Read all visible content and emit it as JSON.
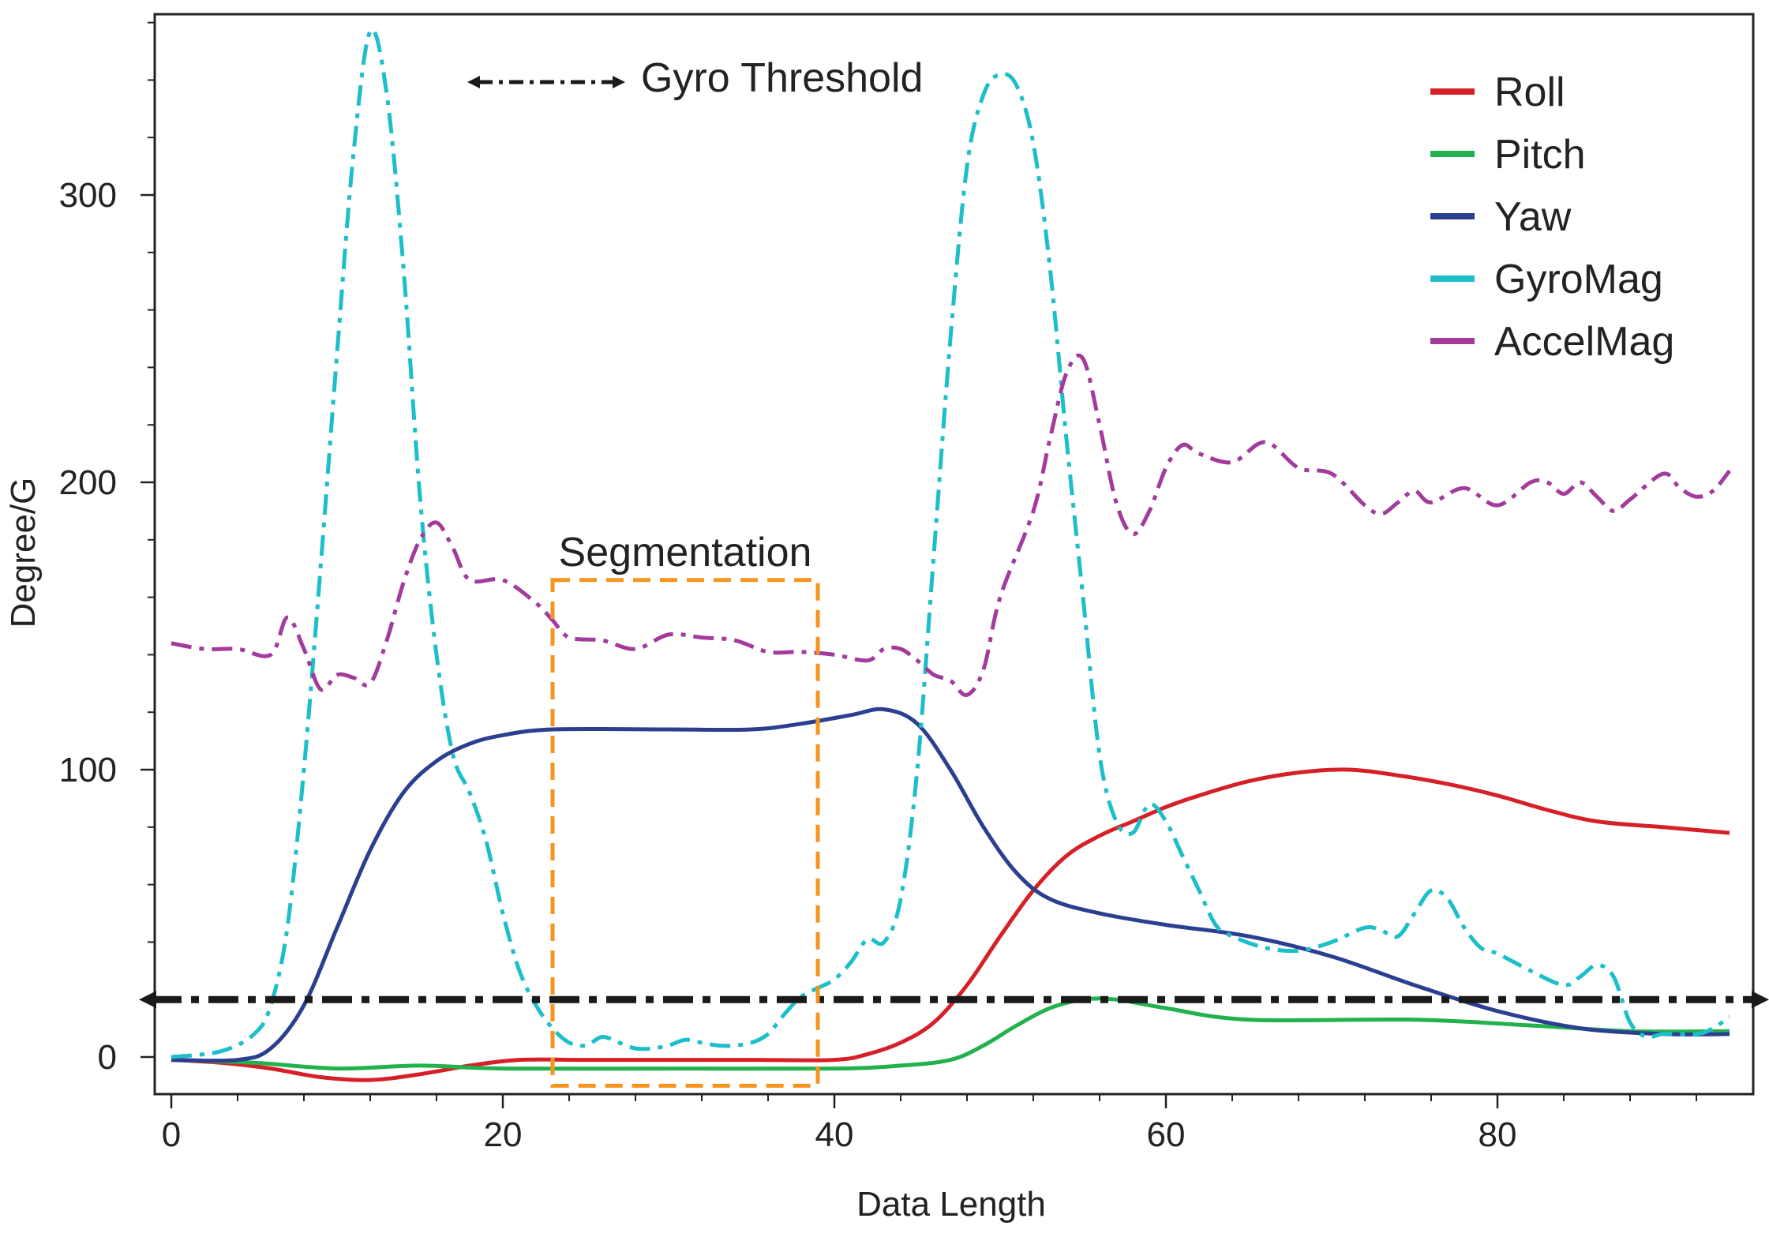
{
  "chart_data": {
    "type": "line",
    "title": "",
    "xlabel": "Data Length",
    "ylabel": "Degree/G",
    "xlim": [
      -1,
      95
    ],
    "ylim": [
      -10,
      360
    ],
    "xticks": [
      0,
      20,
      40,
      60,
      80
    ],
    "yticks": [
      0,
      100,
      200,
      300
    ],
    "x_minor_step": 4,
    "y_minor_step": 20,
    "grid": false,
    "legend_position": "top-right",
    "series": [
      {
        "name": "Roll",
        "color": "#d62027",
        "style": "solid",
        "points": [
          [
            0,
            -1
          ],
          [
            3,
            -2
          ],
          [
            6,
            -4
          ],
          [
            9,
            -7
          ],
          [
            12,
            -8
          ],
          [
            15,
            -6
          ],
          [
            18,
            -3
          ],
          [
            21,
            -1
          ],
          [
            25,
            -1
          ],
          [
            30,
            -1
          ],
          [
            35,
            -1
          ],
          [
            40,
            -1
          ],
          [
            42,
            1
          ],
          [
            44,
            5
          ],
          [
            46,
            12
          ],
          [
            48,
            25
          ],
          [
            50,
            42
          ],
          [
            52,
            58
          ],
          [
            54,
            70
          ],
          [
            56,
            77
          ],
          [
            58,
            82
          ],
          [
            60,
            87
          ],
          [
            62,
            91
          ],
          [
            65,
            96
          ],
          [
            68,
            99
          ],
          [
            71,
            100
          ],
          [
            74,
            98
          ],
          [
            77,
            95
          ],
          [
            80,
            91
          ],
          [
            83,
            86
          ],
          [
            86,
            82
          ],
          [
            90,
            80
          ],
          [
            94,
            78
          ]
        ]
      },
      {
        "name": "Pitch",
        "color": "#22b14c",
        "style": "solid",
        "points": [
          [
            0,
            -1
          ],
          [
            5,
            -2
          ],
          [
            10,
            -4
          ],
          [
            15,
            -3
          ],
          [
            20,
            -4
          ],
          [
            30,
            -4
          ],
          [
            40,
            -4
          ],
          [
            44,
            -3
          ],
          [
            47,
            -1
          ],
          [
            49,
            4
          ],
          [
            51,
            11
          ],
          [
            53,
            17
          ],
          [
            55,
            20
          ],
          [
            57,
            20
          ],
          [
            60,
            17
          ],
          [
            65,
            13
          ],
          [
            75,
            13
          ],
          [
            82,
            11
          ],
          [
            88,
            9
          ],
          [
            94,
            9
          ]
        ]
      },
      {
        "name": "Yaw",
        "color": "#2b3f91",
        "style": "solid",
        "points": [
          [
            0,
            -1
          ],
          [
            4,
            -1
          ],
          [
            6,
            3
          ],
          [
            8,
            18
          ],
          [
            10,
            45
          ],
          [
            12,
            72
          ],
          [
            14,
            92
          ],
          [
            16,
            103
          ],
          [
            18,
            109
          ],
          [
            20,
            112
          ],
          [
            23,
            114
          ],
          [
            30,
            114
          ],
          [
            35,
            114
          ],
          [
            38,
            116
          ],
          [
            41,
            119
          ],
          [
            43,
            121
          ],
          [
            45,
            116
          ],
          [
            47,
            100
          ],
          [
            49,
            80
          ],
          [
            51,
            64
          ],
          [
            53,
            55
          ],
          [
            56,
            50
          ],
          [
            60,
            46
          ],
          [
            65,
            42
          ],
          [
            70,
            35
          ],
          [
            75,
            25
          ],
          [
            80,
            16
          ],
          [
            85,
            10
          ],
          [
            90,
            8
          ],
          [
            94,
            8
          ]
        ]
      },
      {
        "name": "GyroMag",
        "color": "#1cbfc9",
        "style": "dashdot",
        "points": [
          [
            0,
            0
          ],
          [
            3,
            2
          ],
          [
            5,
            8
          ],
          [
            6,
            18
          ],
          [
            7,
            45
          ],
          [
            8,
            100
          ],
          [
            9,
            170
          ],
          [
            10,
            245
          ],
          [
            11,
            315
          ],
          [
            12,
            357
          ],
          [
            13,
            335
          ],
          [
            14,
            275
          ],
          [
            15,
            195
          ],
          [
            16,
            140
          ],
          [
            17,
            105
          ],
          [
            18,
            92
          ],
          [
            19,
            75
          ],
          [
            20,
            50
          ],
          [
            21,
            30
          ],
          [
            22,
            18
          ],
          [
            23,
            10
          ],
          [
            24,
            5
          ],
          [
            25,
            4
          ],
          [
            26,
            7
          ],
          [
            27,
            5
          ],
          [
            28,
            3
          ],
          [
            29,
            3
          ],
          [
            30,
            4
          ],
          [
            31,
            6
          ],
          [
            32,
            5
          ],
          [
            33,
            4
          ],
          [
            34,
            4
          ],
          [
            35,
            5
          ],
          [
            36,
            8
          ],
          [
            37,
            15
          ],
          [
            38,
            21
          ],
          [
            39,
            24
          ],
          [
            40,
            27
          ],
          [
            41,
            33
          ],
          [
            42,
            41
          ],
          [
            43,
            40
          ],
          [
            44,
            55
          ],
          [
            45,
            100
          ],
          [
            46,
            175
          ],
          [
            47,
            250
          ],
          [
            48,
            310
          ],
          [
            49,
            335
          ],
          [
            50,
            342
          ],
          [
            51,
            338
          ],
          [
            52,
            318
          ],
          [
            53,
            275
          ],
          [
            54,
            215
          ],
          [
            55,
            160
          ],
          [
            56,
            105
          ],
          [
            57,
            82
          ],
          [
            58,
            78
          ],
          [
            59,
            88
          ],
          [
            60,
            82
          ],
          [
            61,
            70
          ],
          [
            62,
            58
          ],
          [
            63,
            46
          ],
          [
            64,
            42
          ],
          [
            66,
            38
          ],
          [
            68,
            37
          ],
          [
            70,
            40
          ],
          [
            72,
            45
          ],
          [
            73,
            44
          ],
          [
            74,
            42
          ],
          [
            75,
            50
          ],
          [
            76,
            58
          ],
          [
            77,
            55
          ],
          [
            78,
            45
          ],
          [
            79,
            38
          ],
          [
            80,
            36
          ],
          [
            82,
            30
          ],
          [
            84,
            25
          ],
          [
            85,
            28
          ],
          [
            86,
            32
          ],
          [
            87,
            28
          ],
          [
            88,
            12
          ],
          [
            89,
            7
          ],
          [
            90,
            8
          ],
          [
            92,
            8
          ],
          [
            93,
            10
          ],
          [
            94,
            14
          ]
        ]
      },
      {
        "name": "AccelMag",
        "color": "#a23b9c",
        "style": "dashdot",
        "points": [
          [
            0,
            144
          ],
          [
            2,
            142
          ],
          [
            4,
            142
          ],
          [
            6,
            140
          ],
          [
            7,
            153
          ],
          [
            8,
            142
          ],
          [
            9,
            128
          ],
          [
            10,
            133
          ],
          [
            11,
            132
          ],
          [
            12,
            130
          ],
          [
            13,
            145
          ],
          [
            14,
            165
          ],
          [
            15,
            180
          ],
          [
            16,
            186
          ],
          [
            17,
            177
          ],
          [
            18,
            166
          ],
          [
            20,
            166
          ],
          [
            22,
            158
          ],
          [
            23,
            152
          ],
          [
            24,
            146
          ],
          [
            26,
            145
          ],
          [
            28,
            142
          ],
          [
            30,
            147
          ],
          [
            32,
            146
          ],
          [
            34,
            145
          ],
          [
            36,
            141
          ],
          [
            38,
            141
          ],
          [
            40,
            140
          ],
          [
            42,
            138
          ],
          [
            43,
            142
          ],
          [
            44,
            142
          ],
          [
            45,
            138
          ],
          [
            46,
            133
          ],
          [
            47,
            131
          ],
          [
            48,
            126
          ],
          [
            49,
            135
          ],
          [
            50,
            160
          ],
          [
            52,
            190
          ],
          [
            53,
            215
          ],
          [
            54,
            238
          ],
          [
            55,
            243
          ],
          [
            56,
            220
          ],
          [
            57,
            193
          ],
          [
            58,
            182
          ],
          [
            59,
            190
          ],
          [
            60,
            205
          ],
          [
            61,
            213
          ],
          [
            62,
            210
          ],
          [
            64,
            207
          ],
          [
            66,
            214
          ],
          [
            68,
            205
          ],
          [
            70,
            203
          ],
          [
            72,
            192
          ],
          [
            73,
            189
          ],
          [
            74,
            193
          ],
          [
            75,
            197
          ],
          [
            76,
            193
          ],
          [
            78,
            198
          ],
          [
            80,
            192
          ],
          [
            82,
            200
          ],
          [
            83,
            200
          ],
          [
            84,
            196
          ],
          [
            85,
            200
          ],
          [
            86,
            195
          ],
          [
            87,
            190
          ],
          [
            88,
            194
          ],
          [
            90,
            203
          ],
          [
            91,
            198
          ],
          [
            92,
            195
          ],
          [
            93,
            197
          ],
          [
            94,
            204
          ]
        ]
      }
    ],
    "annotations": [
      {
        "text": "Gyro Threshold",
        "type": "threshold-line",
        "y": 20,
        "color": "#1a1a1a"
      },
      {
        "text": "Segmentation",
        "type": "segment-box",
        "x_range": [
          23,
          39
        ],
        "y_range": [
          -10,
          166
        ],
        "color": "#f7941d"
      }
    ]
  }
}
